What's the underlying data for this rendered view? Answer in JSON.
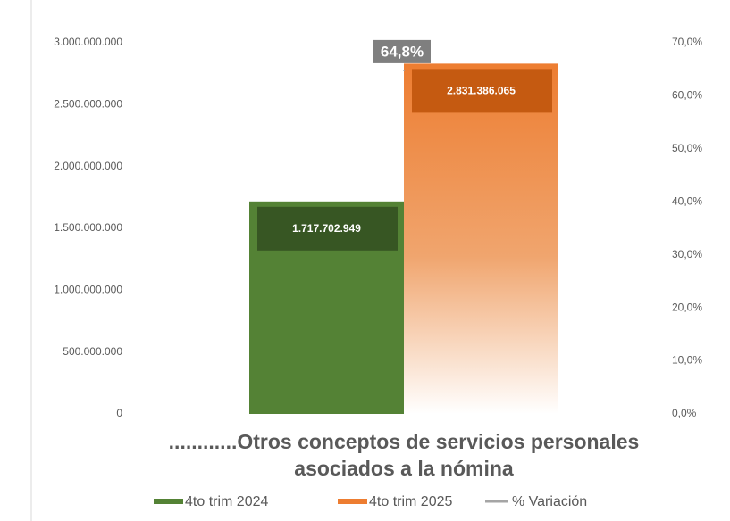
{
  "chart_data": {
    "type": "bar",
    "categories": [
      "............Otros conceptos de servicios personales asociados a la nómina"
    ],
    "series": [
      {
        "name": "4to trim 2024",
        "color": "#548235",
        "values": [
          1717702949
        ],
        "value_labels": [
          "1.717.702.949"
        ]
      },
      {
        "name": "4to trim 2025",
        "color": "#ed7d31",
        "values": [
          2831386065
        ],
        "value_labels": [
          "2.831.386.065"
        ]
      },
      {
        "name": "% Variación",
        "color": "#a5a5a5",
        "axis": "y2",
        "values": [
          64.8
        ],
        "value_labels": [
          "64,8%"
        ]
      }
    ],
    "ylim": [
      0,
      3000000000
    ],
    "yticks": [
      0,
      {
        "value": 500000000,
        "label": "500.000.000"
      },
      {
        "value": 1000000000,
        "label": "1.000.000.000"
      },
      {
        "value": 1500000000,
        "label": "1.500.000.000"
      },
      {
        "value": 2000000000,
        "label": "2.000.000.000"
      },
      {
        "value": 2500000000,
        "label": "2.500.000.000"
      },
      {
        "value": 3000000000,
        "label": "3.000.000.000"
      }
    ],
    "y2lim": [
      0,
      70
    ],
    "y2ticks": [
      {
        "value": 0,
        "label": "0,0%"
      },
      {
        "value": 10,
        "label": "10,0%"
      },
      {
        "value": 20,
        "label": "20,0%"
      },
      {
        "value": 30,
        "label": "30,0%"
      },
      {
        "value": 40,
        "label": "40,0%"
      },
      {
        "value": 50,
        "label": "50,0%"
      },
      {
        "value": 60,
        "label": "60,0%"
      },
      {
        "value": 70,
        "label": "70,0%"
      }
    ],
    "grid": false,
    "legend": "bottom"
  }
}
